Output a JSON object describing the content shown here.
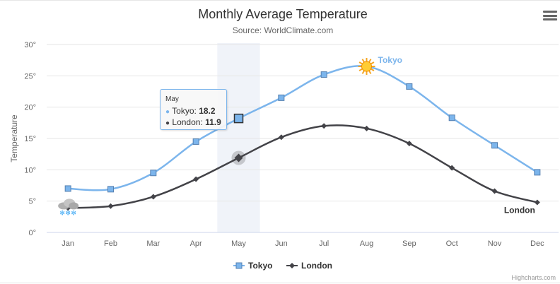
{
  "chart_data": {
    "type": "line",
    "title": "Monthly Average Temperature",
    "subtitle": "Source: WorldClimate.com",
    "xlabel": "",
    "ylabel": "Temperature",
    "categories": [
      "Jan",
      "Feb",
      "Mar",
      "Apr",
      "May",
      "Jun",
      "Jul",
      "Aug",
      "Sep",
      "Oct",
      "Nov",
      "Dec"
    ],
    "ylim": [
      0,
      30
    ],
    "yticks": [
      0,
      5,
      10,
      15,
      20,
      25,
      30
    ],
    "ytick_labels": [
      "0°",
      "5°",
      "10°",
      "15°",
      "20°",
      "25°",
      "30°"
    ],
    "grid": true,
    "series": [
      {
        "name": "Tokyo",
        "color": "#7cb5ec",
        "marker": "square",
        "values": [
          7.0,
          6.9,
          9.5,
          14.5,
          18.2,
          21.5,
          25.2,
          26.5,
          23.3,
          18.3,
          13.9,
          9.6
        ],
        "peak_annotation": "sun-icon",
        "end_label": "Tokyo"
      },
      {
        "name": "London",
        "color": "#434348",
        "marker": "diamond",
        "values": [
          3.9,
          4.2,
          5.7,
          8.5,
          11.9,
          15.2,
          17.0,
          16.6,
          14.2,
          10.3,
          6.6,
          4.8
        ],
        "start_annotation": "snow-cloud-icon",
        "end_label": "London"
      }
    ],
    "highlight_category": "May",
    "legend_position": "bottom-center"
  },
  "tooltip": {
    "header": "May",
    "rows": [
      {
        "bullet": "●",
        "name": "Tokyo",
        "value": "18.2",
        "color": "#7cb5ec"
      },
      {
        "bullet": "●",
        "name": "London",
        "value": "11.9",
        "color": "#434348"
      }
    ]
  },
  "menu": {
    "icon": "menu-icon"
  },
  "credits": "Highcharts.com"
}
